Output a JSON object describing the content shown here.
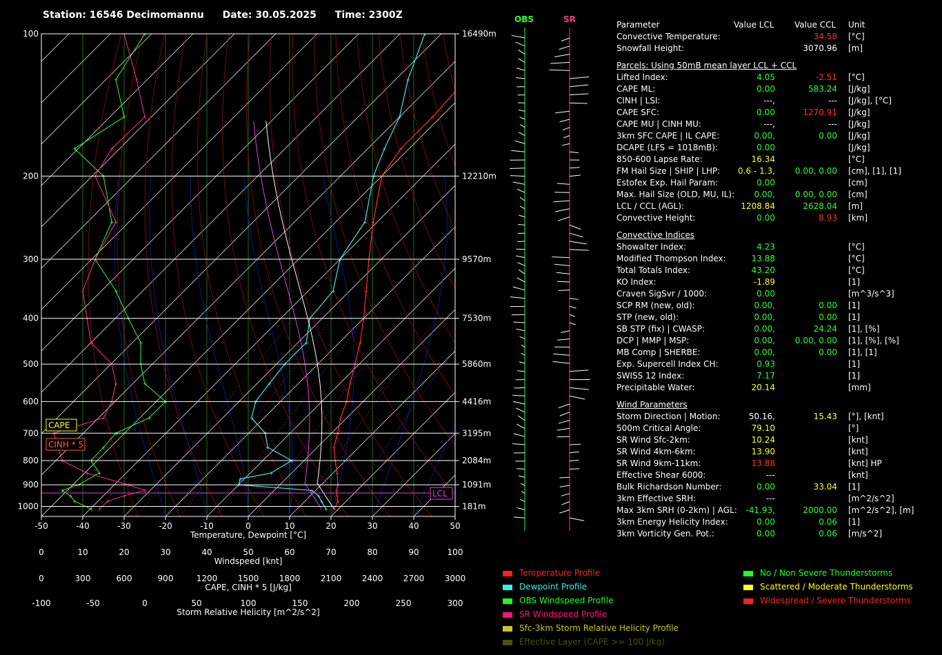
{
  "header": {
    "station": "Station: 16546 Decimomannu",
    "date": "Date: 30.05.2025",
    "time": "Time: 2300Z"
  },
  "chart_data": {
    "type": "line",
    "pressure_ticks": [
      "100",
      "200",
      "300",
      "400",
      "500",
      "600",
      "700",
      "800",
      "900",
      "1000"
    ],
    "height_labels": [
      "16490m",
      "12210m",
      "9570m",
      "7530m",
      "5860m",
      "4416m",
      "3195m",
      "2084m",
      "1091m",
      "181m"
    ],
    "xlabel": "Temperature, Dewpoint  [°C]",
    "xticks": [
      "-50",
      "-40",
      "-30",
      "-20",
      "-10",
      "0",
      "10",
      "20",
      "30",
      "40",
      "50"
    ],
    "ws_label": "Windspeed  [knt]",
    "ws_ticks": [
      "0",
      "10",
      "20",
      "30",
      "40",
      "50",
      "60",
      "70",
      "80",
      "90",
      "100"
    ],
    "cape_label": "CAPE, CINH * 5  [J/kg]",
    "cape_ticks": [
      "0",
      "300",
      "600",
      "900",
      "1200",
      "1500",
      "1800",
      "2100",
      "2400",
      "2700",
      "3000"
    ],
    "srh_label": "Storm Relative Helicity  [m^2/s^2]",
    "srh_ticks": [
      "-100",
      "-50",
      "0",
      "50",
      "100",
      "150",
      "200",
      "250",
      "300"
    ],
    "cape_tag": "CAPE",
    "cinh_tag": "CINH * 5",
    "lcl_tag": "LCL",
    "obs_label": "OBS",
    "sr_label": "SR",
    "series": [
      {
        "name": "Temperature Profile",
        "color": "#ff3030",
        "points": [
          [
            1013,
            19
          ],
          [
            975,
            18
          ],
          [
            950,
            16.5
          ],
          [
            925,
            15
          ],
          [
            900,
            14
          ],
          [
            850,
            11
          ],
          [
            800,
            7.5
          ],
          [
            750,
            4
          ],
          [
            700,
            1.5
          ],
          [
            650,
            -1.5
          ],
          [
            600,
            -4
          ],
          [
            550,
            -7.5
          ],
          [
            500,
            -11
          ],
          [
            450,
            -15
          ],
          [
            400,
            -20
          ],
          [
            350,
            -26
          ],
          [
            300,
            -33
          ],
          [
            250,
            -41
          ],
          [
            200,
            -50
          ],
          [
            175,
            -52
          ],
          [
            150,
            -52
          ],
          [
            125,
            -53
          ],
          [
            100,
            -57
          ]
        ]
      },
      {
        "name": "Dewpoint Profile",
        "color": "#40e8e8",
        "points": [
          [
            1013,
            17
          ],
          [
            975,
            14
          ],
          [
            950,
            12
          ],
          [
            925,
            9
          ],
          [
            900,
            -10
          ],
          [
            875,
            -11
          ],
          [
            850,
            -5
          ],
          [
            800,
            -3
          ],
          [
            750,
            -12
          ],
          [
            700,
            -16
          ],
          [
            650,
            -23
          ],
          [
            600,
            -26
          ],
          [
            550,
            -27
          ],
          [
            500,
            -28
          ],
          [
            450,
            -28
          ],
          [
            400,
            -33
          ],
          [
            350,
            -34
          ],
          [
            300,
            -40
          ],
          [
            250,
            -43
          ],
          [
            200,
            -52
          ],
          [
            175,
            -56
          ],
          [
            150,
            -60
          ],
          [
            125,
            -67
          ],
          [
            100,
            -74
          ]
        ]
      }
    ]
  },
  "params": {
    "head": {
      "param": "Parameter",
      "lcl": "Value LCL",
      "ccl": "Value CCL",
      "unit": "Unit"
    },
    "sections": [
      {
        "title": "",
        "rows": [
          {
            "label": "Convective Temperature:",
            "v1": "",
            "v2": "34.58",
            "unit": "[°C]",
            "c1": "#fff",
            "c2": "#ff3030"
          },
          {
            "label": "Snowfall Height:",
            "v1": "",
            "v2": "3070.96",
            "unit": "[m]",
            "c1": "#fff",
            "c2": "#fff"
          }
        ]
      },
      {
        "title": "Parcels: Using 50mB mean layer LCL + CCL",
        "rows": [
          {
            "label": "Lifted Index:",
            "v1": "4.05",
            "v2": "-2.51",
            "unit": "[°C]",
            "c1": "#30ff30",
            "c2": "#ff3030"
          },
          {
            "label": "CAPE ML:",
            "v1": "0.00",
            "v2": "583.24",
            "unit": "[J/kg]",
            "c1": "#30ff30",
            "c2": "#30ff30"
          },
          {
            "label": "CINH | LSI:",
            "v1": "---,",
            "v2": "---",
            "unit": "[J/kg], [°C]",
            "c1": "#fff",
            "c2": "#fff"
          },
          {
            "label": "CAPE SFC:",
            "v1": "0.00",
            "v2": "1270.91",
            "unit": "[J/kg]",
            "c1": "#30ff30",
            "c2": "#ff3030"
          },
          {
            "label": "CAPE MU | CINH MU:",
            "v1": "---,",
            "v2": "---",
            "unit": "[J/kg]",
            "c1": "#fff",
            "c2": "#fff"
          },
          {
            "label": "3km SFC CAPE | IL CAPE:",
            "v1": "0.00,",
            "v2": "0.00",
            "unit": "[J/kg]",
            "c1": "#30ff30",
            "c2": "#30ff30"
          },
          {
            "label": "DCAPE (LFS = 1018mB):",
            "v1": "0.00",
            "v2": "",
            "unit": "[J/kg]",
            "c1": "#30ff30",
            "c2": "#fff"
          },
          {
            "label": "850-600 Lapse Rate:",
            "v1": "16.34",
            "v2": "",
            "unit": "[°C]",
            "c1": "#ffff30",
            "c2": "#fff"
          },
          {
            "label": "FM Hail Size | SHIP | LHP:",
            "v1": "0.6 - 1.3,",
            "v2": "0.00,  0.00",
            "unit": "[cm], [1], [1]",
            "c1": "#ffff30",
            "c2": "#30ff30"
          },
          {
            "label": "Estofex Exp. Hail Param:",
            "v1": "0.00",
            "v2": "",
            "unit": "[cm]",
            "c1": "#30ff30",
            "c2": "#fff"
          },
          {
            "label": "Max. Hail Size (OLD, MU, IL):",
            "v1": "0.00,",
            "v2": "0.00,  0.00",
            "unit": "[cm]",
            "c1": "#30ff30",
            "c2": "#30ff30"
          },
          {
            "label": "LCL / CCL (AGL):",
            "v1": "1208.84",
            "v2": "2628.04",
            "unit": "[m]",
            "c1": "#ffff30",
            "c2": "#30ff30"
          },
          {
            "label": "Convective Height:",
            "v1": "0.00",
            "v2": "8.93",
            "unit": "[km]",
            "c1": "#30ff30",
            "c2": "#ff3030"
          }
        ]
      },
      {
        "title": "Convective Indices",
        "rows": [
          {
            "label": "Showalter Index:",
            "v1": "4.23",
            "v2": "",
            "unit": "[°C]",
            "c1": "#30ff30",
            "c2": "#fff"
          },
          {
            "label": "Modified Thompson Index:",
            "v1": "13.88",
            "v2": "",
            "unit": "[°C]",
            "c1": "#30ff30",
            "c2": "#fff"
          },
          {
            "label": "Total Totals Index:",
            "v1": "43.20",
            "v2": "",
            "unit": "[°C]",
            "c1": "#30ff30",
            "c2": "#fff"
          },
          {
            "label": "KO Index:",
            "v1": "-1.89",
            "v2": "",
            "unit": "[1]",
            "c1": "#ffff30",
            "c2": "#fff"
          },
          {
            "label": "Craven SigSvr / 1000:",
            "v1": "0.00",
            "v2": "",
            "unit": "[m^3/s^3]",
            "c1": "#30ff30",
            "c2": "#fff"
          },
          {
            "label": "SCP RM (new, old):",
            "v1": "0.00,",
            "v2": "0.00",
            "unit": "[1]",
            "c1": "#30ff30",
            "c2": "#30ff30"
          },
          {
            "label": "STP (new, old):",
            "v1": "0.00,",
            "v2": "0.00",
            "unit": "[1]",
            "c1": "#30ff30",
            "c2": "#30ff30"
          },
          {
            "label": "SB STP (fix) | CWASP:",
            "v1": "0.00,",
            "v2": "24.24",
            "unit": "[1], [%]",
            "c1": "#30ff30",
            "c2": "#30ff30"
          },
          {
            "label": "DCP | MMP | MSP:",
            "v1": "0.00,",
            "v2": "0.00,  0.00",
            "unit": "[1], [%], [%]",
            "c1": "#30ff30",
            "c2": "#30ff30"
          },
          {
            "label": "MB Comp | SHERBE:",
            "v1": "0.00,",
            "v2": "0.00",
            "unit": "[1], [1]",
            "c1": "#30ff30",
            "c2": "#30ff30"
          },
          {
            "label": "Exp. Supercell Index CH:",
            "v1": "0.93",
            "v2": "",
            "unit": "[1]",
            "c1": "#30ff30",
            "c2": "#fff"
          },
          {
            "label": "SWISS 12 Index:",
            "v1": "7.17",
            "v2": "",
            "unit": "[1]",
            "c1": "#30ff30",
            "c2": "#fff"
          },
          {
            "label": "Precipitable Water:",
            "v1": "20.14",
            "v2": "",
            "unit": "[mm]",
            "c1": "#ffff30",
            "c2": "#fff"
          }
        ]
      },
      {
        "title": "Wind Parameters",
        "rows": [
          {
            "label": "Storm Direction | Motion:",
            "v1": "50.16,",
            "v2": "15.43",
            "unit": "[°], [knt]",
            "c1": "#fff",
            "c2": "#ffff30"
          },
          {
            "label": "500m Critical Angle:",
            "v1": "79.10",
            "v2": "",
            "unit": "[°]",
            "c1": "#ffff30",
            "c2": "#fff"
          },
          {
            "label": "SR Wind Sfc-2km:",
            "v1": "10.24",
            "v2": "",
            "unit": "[knt]",
            "c1": "#ffff30",
            "c2": "#fff"
          },
          {
            "label": "SR Wind 4km-6km:",
            "v1": "13.90",
            "v2": "",
            "unit": "[knt]",
            "c1": "#ffff30",
            "c2": "#fff"
          },
          {
            "label": "SR Wind 9km-11km:",
            "v1": "13.88",
            "v2": "",
            "unit": "[knt] HP",
            "c1": "#ff3030",
            "c2": "#fff"
          },
          {
            "label": "Effective Shear 6000:",
            "v1": "---",
            "v2": "",
            "unit": "[knt]",
            "c1": "#fff",
            "c2": "#fff"
          },
          {
            "label": "Bulk Richardson Number:",
            "v1": "0.00",
            "v2": "33.04",
            "unit": "[1]",
            "c1": "#30ff30",
            "c2": "#ffff30"
          },
          {
            "label": "3km Effective SRH:",
            "v1": "---",
            "v2": "",
            "unit": "[m^2/s^2]",
            "c1": "#fff",
            "c2": "#fff"
          },
          {
            "label": "Max 3km SRH (0-2km) | AGL:",
            "v1": "-41.93,",
            "v2": "2000.00",
            "unit": "[m^2/s^2], [m]",
            "c1": "#30ff30",
            "c2": "#30ff30"
          },
          {
            "label": "3km Energy Helicity Index:",
            "v1": "0.00",
            "v2": "0.06",
            "unit": "[1]",
            "c1": "#30ff30",
            "c2": "#30ff30"
          },
          {
            "label": "3km Vorticity Gen. Pot.:",
            "v1": "0.00",
            "v2": "0.06",
            "unit": "[m/s^2]",
            "c1": "#30ff30",
            "c2": "#30ff30"
          }
        ]
      }
    ]
  },
  "legend_left": [
    {
      "label": "Temperature Profile",
      "color": "#ff2020"
    },
    {
      "label": "Dewpoint Profile",
      "color": "#30f0f0"
    },
    {
      "label": "OBS Windspeed Profile",
      "color": "#20ff20"
    },
    {
      "label": "SR Windspeed Profile",
      "color": "#ff1080"
    },
    {
      "label": "Sfc-3km Storm Relative Helicity Profile",
      "color": "#c8c820"
    },
    {
      "label": "Effective Layer (CAPE >= 100 J/kg)",
      "color": "#505010"
    }
  ],
  "legend_right": [
    {
      "label": "No / Non Severe Thunderstorms",
      "color": "#20ff20"
    },
    {
      "label": "Scattered / Moderate Thunderstorms",
      "color": "#ffff20"
    },
    {
      "label": "Widespread / Severe Thunderstorms",
      "color": "#ff2020"
    }
  ]
}
